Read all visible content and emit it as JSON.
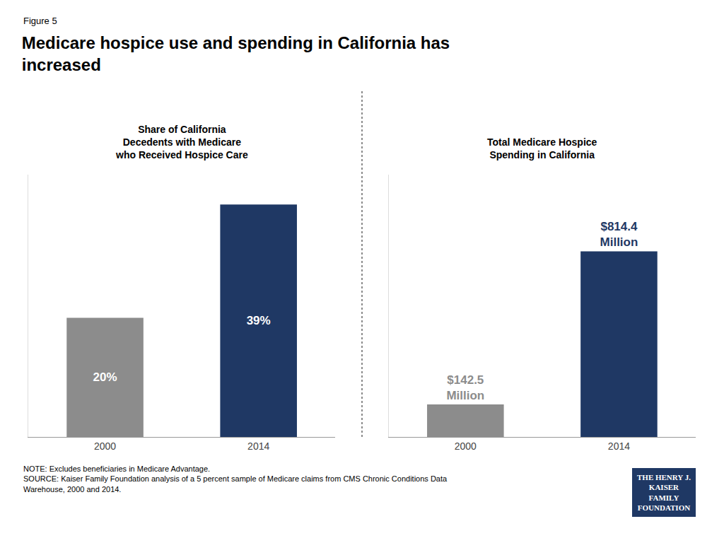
{
  "title": "Medicare hospice use and spending in California has\nincreased",
  "annotations": [
    {
      "text": "Figure 5"
    },
    {
      "text": "NOTE: Excludes beneficiaries in Medicare Advantage.\nSOURCE: Kaiser Family Foundation analysis of a 5 percent sample of Medicare claims from CMS Chronic Conditions Data\nWarehouse, 2000 and 2014."
    },
    {
      "text": "THE HENRY J.\nKAISER\nFAMILY\nFOUNDATION",
      "color": "#1F3864"
    }
  ],
  "chart_data": [
    {
      "type": "bar",
      "title": "Share of California\nDecedents with Medicare\nwho Received Hospice Care",
      "categories": [
        "2000",
        "2014"
      ],
      "values": [
        20,
        39
      ],
      "value_labels": [
        "20%",
        "39%"
      ],
      "data_labels": true,
      "colors": [
        "#8C8C8C",
        "#1F3864"
      ],
      "ylim": [
        0,
        44
      ],
      "tick_labels": "x",
      "grid": false
    },
    {
      "type": "bar",
      "title": "Total Medicare Hospice\nSpending in California",
      "categories": [
        "2000",
        "2014"
      ],
      "values": [
        142.5,
        814.4
      ],
      "value_labels": [
        "$142.5\nMillion",
        "$814.4\nMillion"
      ],
      "data_labels": true,
      "colors": [
        "#8C8C8C",
        "#1F3864"
      ],
      "ylim": [
        0,
        1150
      ],
      "tick_labels": "x",
      "grid": false
    }
  ]
}
